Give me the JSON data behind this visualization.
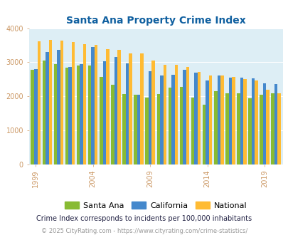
{
  "title": "Santa Ana Property Crime Index",
  "title_color": "#1060a0",
  "plot_bg_color": "#ddeef5",
  "fig_bg_color": "#ffffff",
  "years": [
    1999,
    2000,
    2001,
    2002,
    2003,
    2004,
    2005,
    2006,
    2007,
    2008,
    2009,
    2010,
    2011,
    2012,
    2013,
    2014,
    2015,
    2016,
    2017,
    2018,
    2019,
    2020
  ],
  "santa_ana": [
    2780,
    3050,
    2950,
    2850,
    2900,
    2910,
    2570,
    2350,
    2070,
    2040,
    1960,
    2060,
    2260,
    2270,
    1960,
    1750,
    2160,
    2090,
    2100,
    1950,
    2040,
    2090
  ],
  "california": [
    2810,
    3310,
    3360,
    2870,
    2940,
    3440,
    3020,
    3160,
    2960,
    2040,
    2740,
    2610,
    2630,
    2780,
    2690,
    2460,
    2620,
    2560,
    2560,
    2520,
    2390,
    2360
  ],
  "national": [
    3620,
    3660,
    3640,
    3600,
    3540,
    3510,
    3380,
    3360,
    3270,
    3260,
    3050,
    2930,
    2920,
    2870,
    2720,
    2620,
    2620,
    2570,
    2510,
    2460,
    2200,
    2100
  ],
  "santa_ana_color": "#88bb33",
  "california_color": "#4488cc",
  "national_color": "#ffbb33",
  "tick_fontsize": 7,
  "title_fontsize": 10,
  "bar_width": 0.28,
  "ylim": [
    0,
    4000
  ],
  "yticks": [
    0,
    1000,
    2000,
    3000,
    4000
  ],
  "xtick_years": [
    1999,
    2004,
    2009,
    2014,
    2019
  ],
  "legend_labels": [
    "Santa Ana",
    "California",
    "National"
  ],
  "footnote1": "Crime Index corresponds to incidents per 100,000 inhabitants",
  "footnote2": "© 2025 CityRating.com - https://www.cityrating.com/crime-statistics/",
  "footnote1_color": "#222244",
  "footnote2_color": "#999999",
  "ytick_color": "#cc9966",
  "xtick_color": "#cc9966"
}
